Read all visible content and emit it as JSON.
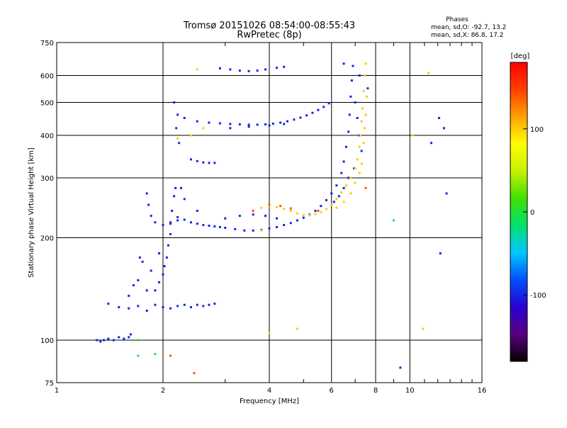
{
  "header": {
    "title_line1": "Tromsø 20151026 08:54:00-08:55:43",
    "title_line2": "RwPretec (8p)",
    "phases_title": "Phases",
    "phases_o": "mean, sd,O: -92.7, 13.2",
    "phases_x": "mean, sd,X:  86.8, 17.2"
  },
  "colorbar": {
    "unit_label": "[deg]",
    "min": -180,
    "max": 180,
    "ticks": [
      {
        "value": 100,
        "label": "100"
      },
      {
        "value": 0,
        "label": "0"
      },
      {
        "value": -100,
        "label": "-100"
      }
    ],
    "colors": [
      "#000000",
      "#5a0080",
      "#2a00d0",
      "#0050ff",
      "#00c8ff",
      "#00e070",
      "#40e000",
      "#c8f000",
      "#ffff00",
      "#ffa000",
      "#ff4000",
      "#ff0000"
    ]
  },
  "chart_data": {
    "type": "scatter",
    "xlabel": "Frequency [MHz]",
    "ylabel": "Stationary phase Virtual Height [km]",
    "x_scale": "log2",
    "y_scale": "log",
    "xlim": [
      1,
      16
    ],
    "ylim": [
      75,
      750
    ],
    "x_ticks": [
      {
        "value": 1,
        "label": "1"
      },
      {
        "value": 2,
        "label": "2"
      },
      {
        "value": 4,
        "label": "4"
      },
      {
        "value": 6,
        "label": "6"
      },
      {
        "value": 8,
        "label": "8"
      },
      {
        "value": 10,
        "label": "10"
      },
      {
        "value": 16,
        "label": "16"
      }
    ],
    "x_grid": [
      2,
      4,
      6,
      8,
      10
    ],
    "x_minor": [
      3,
      5,
      7,
      9,
      11,
      12,
      13,
      14,
      15
    ],
    "y_ticks": [
      {
        "value": 75,
        "label": "75"
      },
      {
        "value": 100,
        "label": "100"
      },
      {
        "value": 200,
        "label": "200"
      },
      {
        "value": 300,
        "label": "300"
      },
      {
        "value": 400,
        "label": "400"
      },
      {
        "value": 500,
        "label": "500"
      },
      {
        "value": 600,
        "label": "600"
      },
      {
        "value": 750,
        "label": "750"
      }
    ],
    "y_grid": [
      100,
      200,
      300,
      400,
      500,
      600
    ],
    "grid": true,
    "series": [
      {
        "mode": "O",
        "phase": -100,
        "points": [
          [
            1.3,
            100
          ],
          [
            1.33,
            99
          ],
          [
            1.36,
            100
          ],
          [
            1.4,
            101
          ],
          [
            1.45,
            100
          ],
          [
            1.5,
            102
          ],
          [
            1.55,
            101
          ],
          [
            1.6,
            102
          ],
          [
            1.62,
            104
          ],
          [
            1.4,
            128
          ],
          [
            1.5,
            125
          ],
          [
            1.6,
            124
          ],
          [
            1.7,
            126
          ],
          [
            1.8,
            122
          ],
          [
            1.9,
            127
          ],
          [
            2.0,
            125
          ],
          [
            2.1,
            124
          ],
          [
            2.2,
            126
          ],
          [
            2.3,
            127
          ],
          [
            2.4,
            125
          ],
          [
            2.5,
            127
          ],
          [
            2.6,
            126
          ],
          [
            2.7,
            127
          ],
          [
            2.8,
            128
          ],
          [
            1.9,
            140
          ],
          [
            1.95,
            148
          ],
          [
            2.0,
            156
          ],
          [
            2.02,
            165
          ],
          [
            2.05,
            175
          ],
          [
            2.07,
            190
          ],
          [
            2.1,
            205
          ],
          [
            2.1,
            220
          ],
          [
            2.12,
            240
          ],
          [
            2.15,
            265
          ],
          [
            2.17,
            280
          ],
          [
            1.75,
            170
          ],
          [
            1.85,
            160
          ],
          [
            1.7,
            150
          ],
          [
            1.8,
            140
          ],
          [
            1.95,
            180
          ],
          [
            1.72,
            175
          ],
          [
            1.65,
            145
          ],
          [
            1.6,
            135
          ],
          [
            1.8,
            270
          ],
          [
            1.82,
            250
          ],
          [
            1.85,
            232
          ],
          [
            1.9,
            222
          ],
          [
            2.0,
            218
          ],
          [
            2.1,
            222
          ],
          [
            2.2,
            225
          ],
          [
            2.2,
            230
          ],
          [
            2.3,
            226
          ],
          [
            2.4,
            222
          ],
          [
            2.5,
            220
          ],
          [
            2.6,
            218
          ],
          [
            2.7,
            217
          ],
          [
            2.8,
            216
          ],
          [
            2.9,
            215
          ],
          [
            3.0,
            214
          ],
          [
            3.2,
            212
          ],
          [
            3.4,
            210
          ],
          [
            3.6,
            210
          ],
          [
            3.8,
            211
          ],
          [
            4.0,
            213
          ],
          [
            4.2,
            215
          ],
          [
            4.4,
            218
          ],
          [
            4.6,
            221
          ],
          [
            4.8,
            225
          ],
          [
            5.0,
            229
          ],
          [
            5.2,
            234
          ],
          [
            5.4,
            240
          ],
          [
            5.6,
            248
          ],
          [
            5.8,
            258
          ],
          [
            6.0,
            270
          ],
          [
            6.2,
            285
          ],
          [
            6.4,
            310
          ],
          [
            6.5,
            335
          ],
          [
            6.6,
            370
          ],
          [
            6.7,
            410
          ],
          [
            6.75,
            460
          ],
          [
            6.8,
            520
          ],
          [
            6.85,
            580
          ],
          [
            6.9,
            640
          ],
          [
            3.0,
            228
          ],
          [
            3.3,
            232
          ],
          [
            3.6,
            234
          ],
          [
            3.9,
            232
          ],
          [
            4.2,
            228
          ],
          [
            2.5,
            240
          ],
          [
            2.3,
            260
          ],
          [
            2.25,
            280
          ],
          [
            2.3,
            450
          ],
          [
            2.5,
            440
          ],
          [
            2.7,
            436
          ],
          [
            2.9,
            434
          ],
          [
            3.1,
            432
          ],
          [
            3.3,
            431
          ],
          [
            3.5,
            430
          ],
          [
            3.7,
            430
          ],
          [
            3.9,
            431
          ],
          [
            4.1,
            433
          ],
          [
            4.3,
            436
          ],
          [
            4.5,
            440
          ],
          [
            4.7,
            445
          ],
          [
            4.9,
            451
          ],
          [
            5.1,
            458
          ],
          [
            5.3,
            466
          ],
          [
            5.5,
            475
          ],
          [
            5.7,
            485
          ],
          [
            5.9,
            497
          ],
          [
            3.1,
            420
          ],
          [
            3.5,
            424
          ],
          [
            4.0,
            428
          ],
          [
            4.4,
            432
          ],
          [
            2.4,
            340
          ],
          [
            2.5,
            336
          ],
          [
            2.6,
            333
          ],
          [
            2.7,
            332
          ],
          [
            2.8,
            332
          ],
          [
            2.9,
            630
          ],
          [
            3.1,
            625
          ],
          [
            3.3,
            620
          ],
          [
            3.5,
            618
          ],
          [
            3.7,
            620
          ],
          [
            3.9,
            625
          ],
          [
            4.2,
            632
          ],
          [
            4.4,
            636
          ],
          [
            2.15,
            500
          ],
          [
            2.2,
            460
          ],
          [
            2.18,
            420
          ],
          [
            2.22,
            380
          ],
          [
            7.0,
            500
          ],
          [
            7.1,
            450
          ],
          [
            7.2,
            400
          ],
          [
            7.3,
            360
          ],
          [
            6.95,
            320
          ],
          [
            6.7,
            300
          ],
          [
            6.5,
            280
          ],
          [
            6.3,
            265
          ],
          [
            6.1,
            255
          ],
          [
            12.1,
            450
          ],
          [
            11.5,
            380
          ],
          [
            12.5,
            420
          ],
          [
            12.7,
            270
          ],
          [
            12.2,
            180
          ],
          [
            9.4,
            83
          ],
          [
            7.6,
            550
          ],
          [
            7.2,
            600
          ],
          [
            6.5,
            650
          ]
        ]
      },
      {
        "mode": "X",
        "phase": 100,
        "points": [
          [
            3.8,
            245
          ],
          [
            4.0,
            248
          ],
          [
            4.2,
            246
          ],
          [
            4.4,
            243
          ],
          [
            4.6,
            240
          ],
          [
            4.8,
            236
          ],
          [
            5.0,
            233
          ],
          [
            5.2,
            233
          ],
          [
            5.4,
            235
          ],
          [
            5.6,
            238
          ],
          [
            5.8,
            243
          ],
          [
            6.0,
            250
          ],
          [
            6.2,
            260
          ],
          [
            6.4,
            272
          ],
          [
            6.6,
            285
          ],
          [
            6.8,
            300
          ],
          [
            7.0,
            320
          ],
          [
            7.1,
            340
          ],
          [
            7.2,
            370
          ],
          [
            7.25,
            400
          ],
          [
            7.3,
            440
          ],
          [
            7.35,
            480
          ],
          [
            7.4,
            540
          ],
          [
            7.45,
            600
          ],
          [
            7.5,
            650
          ],
          [
            6.2,
            245
          ],
          [
            6.5,
            255
          ],
          [
            6.8,
            270
          ],
          [
            7.0,
            290
          ],
          [
            7.2,
            310
          ],
          [
            7.4,
            380
          ],
          [
            7.45,
            420
          ],
          [
            7.3,
            330
          ],
          [
            7.5,
            460
          ],
          [
            7.55,
            520
          ],
          [
            2.5,
            625
          ],
          [
            2.4,
            400
          ],
          [
            2.6,
            420
          ],
          [
            2.2,
            392
          ],
          [
            3.8,
            210
          ],
          [
            4.0,
            105
          ],
          [
            4.8,
            108
          ],
          [
            10.9,
            108
          ],
          [
            10.2,
            400
          ],
          [
            11.3,
            610
          ]
        ]
      },
      {
        "mode": "X",
        "phase": 140,
        "points": [
          [
            4.0,
            250
          ],
          [
            4.3,
            248
          ],
          [
            4.6,
            244
          ],
          [
            5.5,
            240
          ],
          [
            3.6,
            240
          ],
          [
            2.1,
            90
          ],
          [
            2.45,
            80
          ],
          [
            7.5,
            280
          ]
        ]
      },
      {
        "mode": "O",
        "phase": 0,
        "points": [
          [
            1.7,
            90
          ],
          [
            1.9,
            91
          ],
          [
            9.0,
            225
          ],
          [
            1.7,
            100
          ]
        ]
      }
    ]
  }
}
